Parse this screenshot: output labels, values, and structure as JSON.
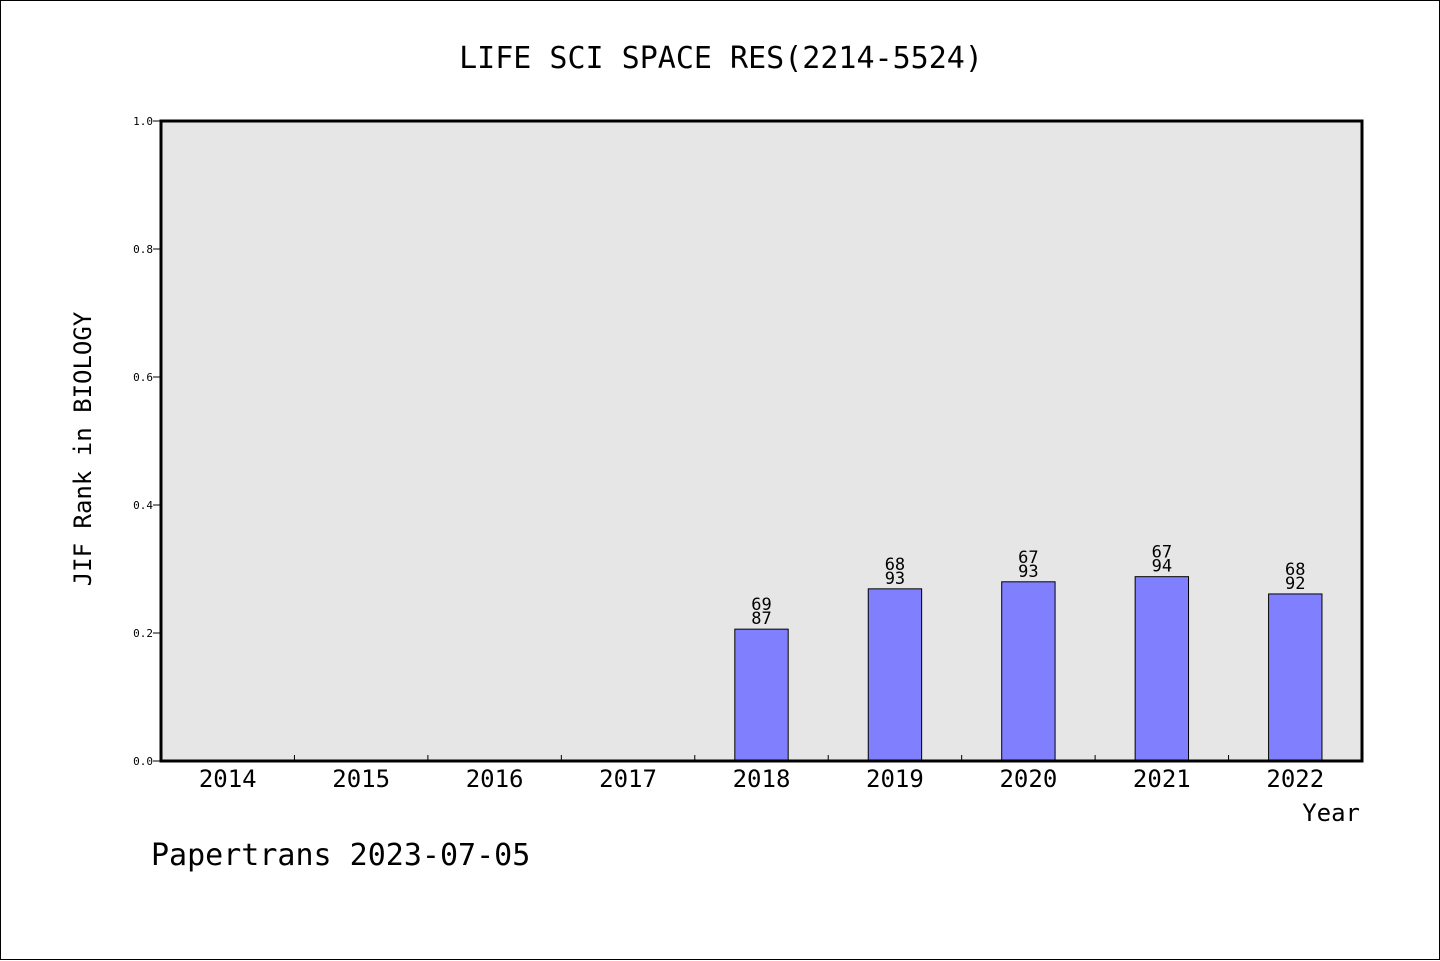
{
  "chart_data": {
    "type": "bar",
    "title": "LIFE SCI SPACE RES(2214-5524)",
    "xlabel": "Year",
    "ylabel": "JIF Rank in BIOLOGY",
    "categories": [
      "2014",
      "2015",
      "2016",
      "2017",
      "2018",
      "2019",
      "2020",
      "2021",
      "2022"
    ],
    "values": [
      null,
      null,
      null,
      null,
      0.206,
      0.269,
      0.28,
      0.288,
      0.261
    ],
    "bar_labels": [
      null,
      null,
      null,
      null,
      [
        "69",
        "87"
      ],
      [
        "68",
        "93"
      ],
      [
        "67",
        "93"
      ],
      [
        "67",
        "94"
      ],
      [
        "68",
        "92"
      ]
    ],
    "ylim": [
      0,
      1.0
    ],
    "yticks": [
      "0.0",
      "0.2",
      "0.4",
      "0.6",
      "0.8",
      "1.0"
    ],
    "grid": false,
    "bar_color": "#8080ff",
    "plot_background": "#e6e6e6"
  },
  "footer": {
    "credit": "Papertrans 2023-07-05"
  }
}
